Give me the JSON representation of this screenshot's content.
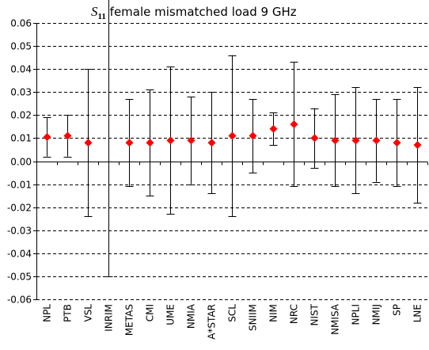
{
  "chart_data": {
    "type": "scatter",
    "title": {
      "symbol": "S",
      "subscript": "11",
      "text": " female mismatched load   9 GHz"
    },
    "xlabel": "",
    "ylabel": "",
    "ylim": [
      -0.06,
      0.06
    ],
    "yticks": [
      0.06,
      0.05,
      0.04,
      0.03,
      0.02,
      0.01,
      0.0,
      -0.01,
      -0.02,
      -0.03,
      -0.04,
      -0.05,
      -0.06
    ],
    "ytick_labels": [
      "0.06",
      "0.05",
      "0.04",
      "0.03",
      "0.02",
      "0.01",
      "0.00",
      "-0.01",
      "-0.02",
      "-0.03",
      "-0.04",
      "-0.05",
      "-0.06"
    ],
    "grid": "horizontal-dashed",
    "marker_color": "#ff0000",
    "categories": [
      "NPL",
      "PTB",
      "VSL",
      "INRIM",
      "METAS",
      "CMI",
      "UME",
      "NMIA",
      "A*STAR",
      "SCL",
      "SNIIM",
      "NIM",
      "NRC",
      "NIST",
      "NMISA",
      "NPLI",
      "NMIJ",
      "SP",
      "LNE"
    ],
    "values": [
      0.0105,
      0.011,
      0.008,
      null,
      0.008,
      0.008,
      0.009,
      0.009,
      0.008,
      0.011,
      0.011,
      0.014,
      0.016,
      0.01,
      0.009,
      0.009,
      0.009,
      0.008,
      0.007
    ],
    "err_upper": [
      0.019,
      0.02,
      0.04,
      0.07,
      0.027,
      0.031,
      0.041,
      0.028,
      0.03,
      0.046,
      0.027,
      0.021,
      0.043,
      0.023,
      0.029,
      0.032,
      0.027,
      0.027,
      0.032
    ],
    "err_lower": [
      0.002,
      0.002,
      -0.024,
      -0.05,
      -0.011,
      -0.015,
      -0.023,
      -0.01,
      -0.014,
      -0.024,
      -0.005,
      0.007,
      -0.011,
      -0.003,
      -0.011,
      -0.014,
      -0.009,
      -0.011,
      -0.018
    ]
  }
}
